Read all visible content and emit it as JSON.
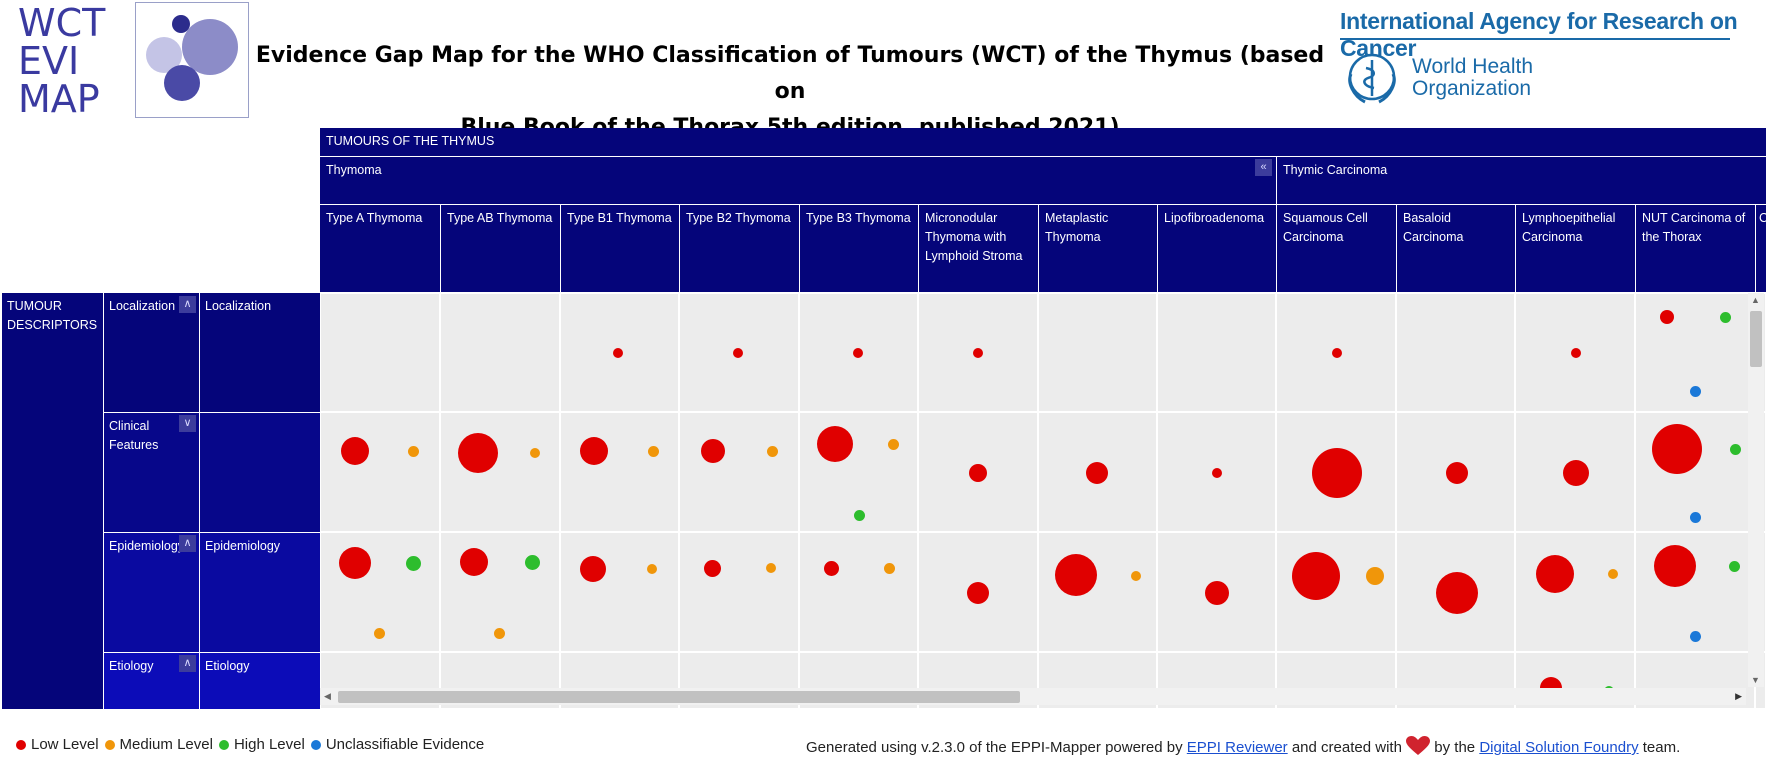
{
  "logo": {
    "line1": "WCT",
    "line2": "EVI",
    "line3": "MAP"
  },
  "title": {
    "line1": "Evidence Gap Map for the WHO Classification of Tumours (WCT) of the Thymus (based on",
    "line2": "Blue Book of the Thorax 5th edition, published 2021)"
  },
  "partner": {
    "iarc": "International Agency for Research on Cancer",
    "who_line1": "World Health",
    "who_line2": "Organization"
  },
  "colors": {
    "header_blue": "#05057a",
    "low": "#e00000",
    "medium": "#f0960a",
    "high": "#2dbd2d",
    "unclassifiable": "#1a78d8",
    "cell_bg": "#ececec"
  },
  "grid": {
    "top_header": "TUMOURS OF THE THYMUS",
    "group_thymoma": "Thymoma",
    "group_thymic": "Thymic Carcinoma",
    "columns": [
      "Type A Thymoma",
      "Type AB Thymoma",
      "Type B1 Thymoma",
      "Type B2 Thymoma",
      "Type B3 Thymoma",
      "Micronodular Thymoma with Lymphoid Stroma",
      "Metaplastic Thymoma",
      "Lipofibroadenoma",
      "Squamous Cell Carcinoma",
      "Basaloid Carcinoma",
      "Lymphoepithelial Carcinoma",
      "NUT Carcinoma of the Thorax",
      "C"
    ],
    "row_group": "TUMOUR DESCRIPTORS",
    "rows": [
      {
        "name": "Localization",
        "sub": "Localization",
        "expanded": true
      },
      {
        "name": "Clinical Features",
        "sub": "",
        "expanded": false
      },
      {
        "name": "Epidemiology",
        "sub": "Epidemiology",
        "expanded": true
      },
      {
        "name": "Etiology",
        "sub": "Etiology",
        "expanded": true
      }
    ]
  },
  "legend": {
    "low": "Low Level",
    "medium": "Medium Level",
    "high": "High Level",
    "unclassifiable": "Unclassifiable Evidence"
  },
  "footer": {
    "prefix": "Generated using v.2.3.0 of the EPPI-Mapper powered by",
    "link1": "EPPI Reviewer",
    "middle": "and created with",
    "suffix_pre": "by the",
    "link2": "Digital Solution Foundry",
    "suffix": "team."
  }
}
